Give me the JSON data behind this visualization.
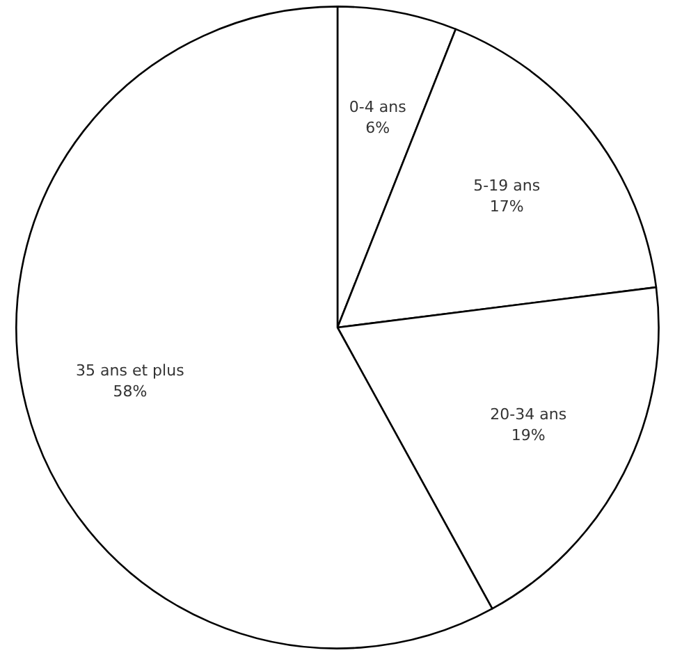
{
  "chart_data": {
    "type": "pie",
    "categories": [
      "0-4 ans",
      "5-19 ans",
      "20-34 ans",
      "35 ans et plus"
    ],
    "values": [
      6,
      17,
      19,
      58
    ],
    "colors": [
      "#ffffff",
      "#ffffff",
      "#ffffff",
      "#ffffff"
    ],
    "value_labels": [
      "6%",
      "17%",
      "19%",
      "58%"
    ],
    "legend": false
  }
}
